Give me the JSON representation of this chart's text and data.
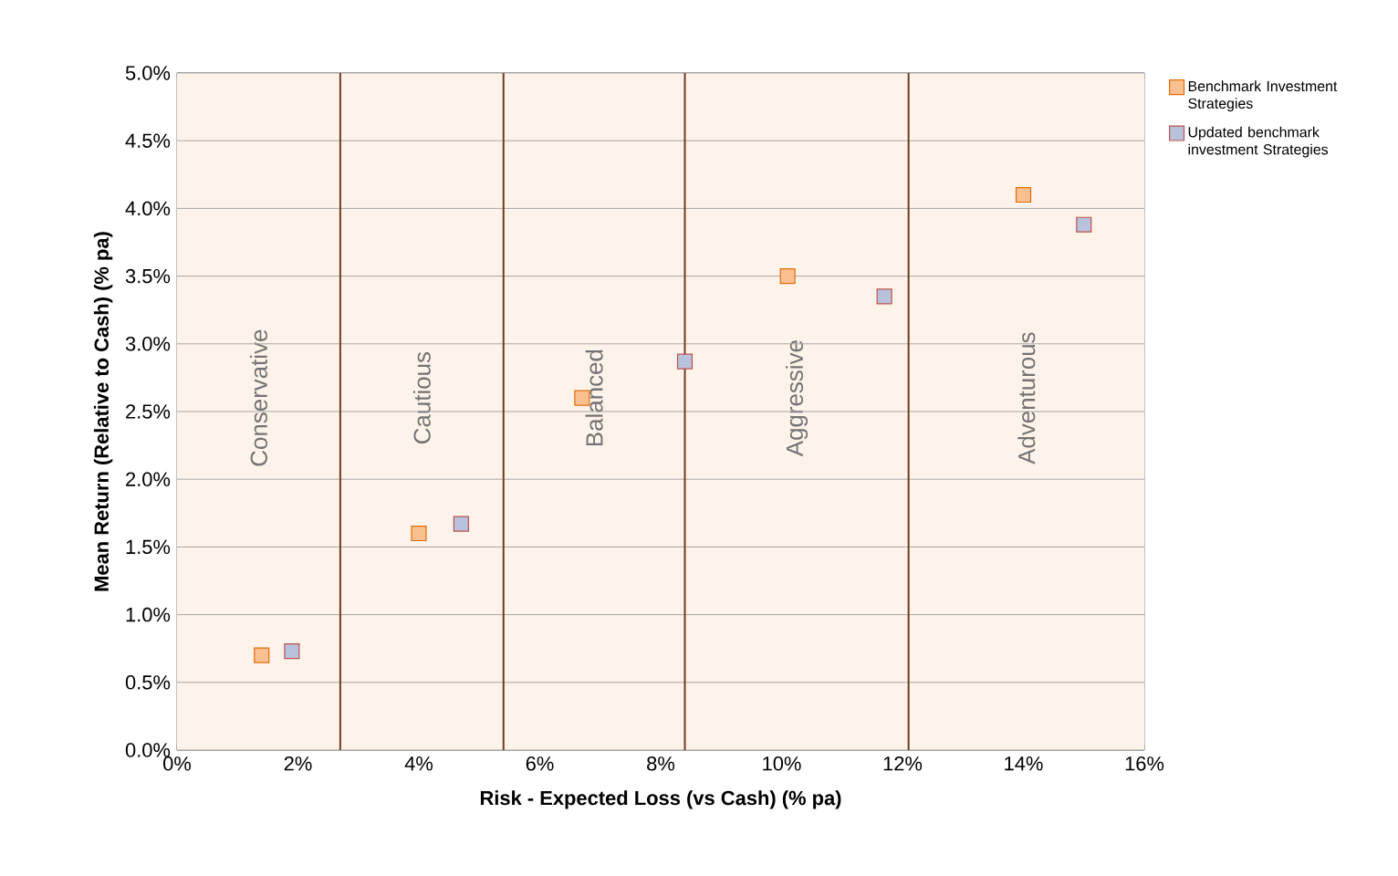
{
  "chart_data": {
    "type": "scatter",
    "xlabel": "Risk - Expected Loss (vs Cash) (% pa)",
    "ylabel": "Mean Return (Relative to Cash) (% pa)",
    "series": [
      {
        "name": "Benchmark Investment Strategies",
        "color": "#fac090",
        "x": [
          1.4,
          4.0,
          6.7,
          10.1,
          14.0
        ],
        "values": [
          0.7,
          1.6,
          2.6,
          3.5,
          4.1
        ]
      },
      {
        "name": "Updated benchmark investment Strategies",
        "color": "#b9c2dc",
        "x": [
          1.9,
          4.7,
          8.4,
          11.7,
          15.0
        ],
        "values": [
          0.73,
          1.67,
          2.87,
          3.35,
          3.88
        ]
      }
    ],
    "bands": [
      {
        "axis": "x",
        "from": 0,
        "to": 2.7,
        "label": "Conservative",
        "color": "#fdf3ea"
      },
      {
        "axis": "x",
        "from": 2.7,
        "to": 5.4,
        "label": "Cautious",
        "color": "#fdf3ea"
      },
      {
        "axis": "x",
        "from": 5.4,
        "to": 8.4,
        "label": "Balanced",
        "color": "#fdf3ea"
      },
      {
        "axis": "x",
        "from": 8.4,
        "to": 12.1,
        "label": "Aggressive",
        "color": "#fdf3ea"
      },
      {
        "axis": "x",
        "from": 12.1,
        "to": 16,
        "label": "Adventurous",
        "color": "#fdf3ea"
      }
    ],
    "ref_lines": [
      {
        "axis": "x",
        "value": 2.7,
        "color": "#6e3c1e"
      },
      {
        "axis": "x",
        "value": 5.4,
        "color": "#6e3c1e"
      },
      {
        "axis": "x",
        "value": 8.4,
        "color": "#6e3c1e"
      },
      {
        "axis": "x",
        "value": 12.1,
        "color": "#6e3c1e"
      }
    ],
    "xlim": [
      0,
      16
    ],
    "xticks": [
      {
        "value": 0,
        "label": "0%"
      },
      {
        "value": 2,
        "label": "2%"
      },
      {
        "value": 4,
        "label": "4%"
      },
      {
        "value": 6,
        "label": "6%"
      },
      {
        "value": 8,
        "label": "8%"
      },
      {
        "value": 10,
        "label": "10%"
      },
      {
        "value": 12,
        "label": "12%"
      },
      {
        "value": 14,
        "label": "14%"
      },
      {
        "value": 16,
        "label": "16%"
      }
    ],
    "ylim": [
      0,
      5
    ],
    "yticks": [
      {
        "value": 0,
        "label": "0.0%"
      },
      {
        "value": 0.5,
        "label": "0.5%"
      },
      {
        "value": 1,
        "label": "1.0%"
      },
      {
        "value": 1.5,
        "label": "1.5%"
      },
      {
        "value": 2,
        "label": "2.0%"
      },
      {
        "value": 2.5,
        "label": "2.5%"
      },
      {
        "value": 3,
        "label": "3.0%"
      },
      {
        "value": 3.5,
        "label": "3.5%"
      },
      {
        "value": 4,
        "label": "4.0%"
      },
      {
        "value": 4.5,
        "label": "4.5%"
      },
      {
        "value": 5,
        "label": "5.0%"
      }
    ],
    "grid": "y",
    "legend": "top right",
    "marker": "square"
  }
}
